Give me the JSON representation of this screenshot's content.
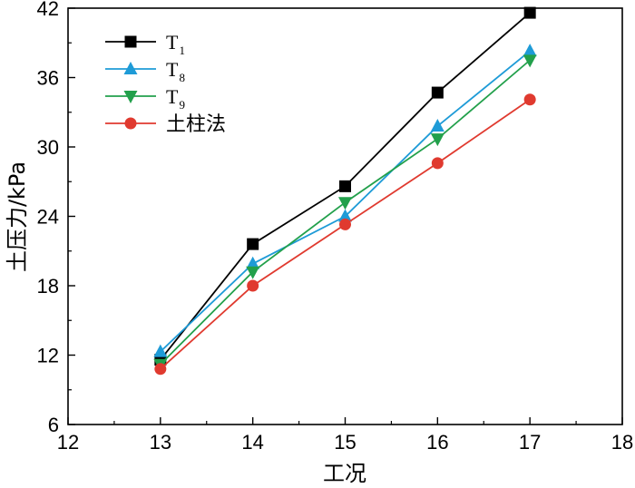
{
  "chart_data": {
    "type": "line",
    "xlabel": "工况",
    "ylabel": "土压力/kPa",
    "xlim": [
      12,
      18
    ],
    "ylim": [
      6,
      42
    ],
    "xticks": [
      12,
      13,
      14,
      15,
      16,
      17,
      18
    ],
    "yticks": [
      6,
      12,
      18,
      24,
      30,
      36,
      42
    ],
    "x": [
      13,
      14,
      15,
      16,
      17
    ],
    "legend_position": "top-left",
    "grid": false,
    "series": [
      {
        "name": "T",
        "subscript": "1",
        "marker": "square",
        "color": "#000000",
        "values": [
          11.6,
          21.6,
          26.6,
          34.7,
          41.6
        ]
      },
      {
        "name": "T",
        "subscript": "8",
        "marker": "triangle-up",
        "color": "#1e9bd7",
        "values": [
          12.3,
          19.9,
          24.0,
          31.8,
          38.3
        ]
      },
      {
        "name": "T",
        "subscript": "9",
        "marker": "triangle-down",
        "color": "#22a04b",
        "values": [
          11.2,
          19.2,
          25.2,
          30.7,
          37.5
        ]
      },
      {
        "name": "土柱法",
        "subscript": "",
        "marker": "circle",
        "color": "#e03a2f",
        "values": [
          10.8,
          18.0,
          23.3,
          28.6,
          34.1
        ]
      }
    ]
  }
}
